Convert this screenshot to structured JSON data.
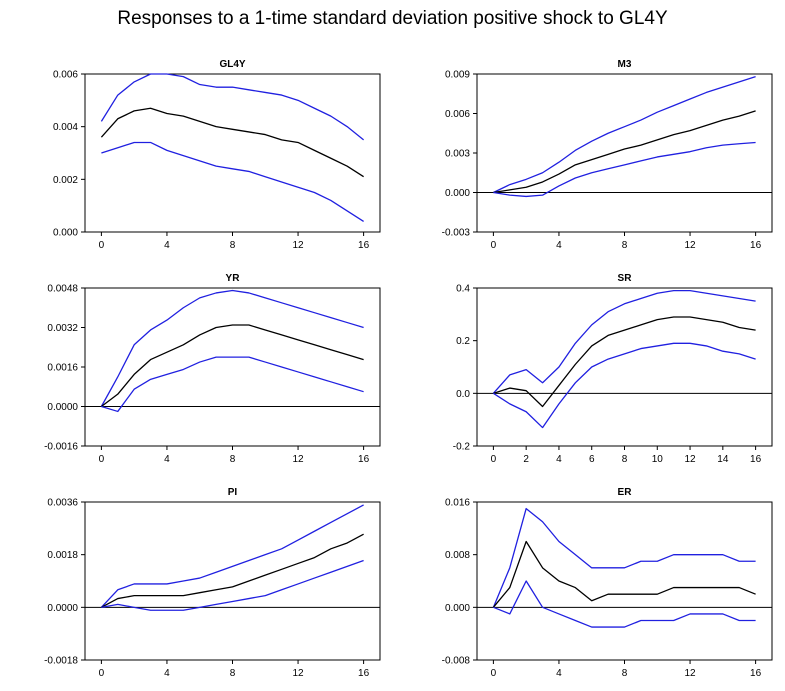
{
  "title": "Responses to a 1-time standard deviation positive shock to GL4Y",
  "colors": {
    "band": "#2020e0",
    "response": "#000000",
    "axis": "#000000"
  },
  "chart_data": [
    {
      "type": "line",
      "title": "GL4Y",
      "xlim": [
        -1,
        17
      ],
      "ylim": [
        0.0,
        0.006
      ],
      "xticks": [
        0,
        4,
        8,
        12,
        16
      ],
      "yticks": [
        "0.000",
        "0.002",
        "0.004",
        "0.006"
      ],
      "zero_line": false,
      "x": [
        0,
        1,
        2,
        3,
        4,
        5,
        6,
        7,
        8,
        9,
        10,
        11,
        12,
        13,
        14,
        15,
        16
      ],
      "series": [
        {
          "role": "upper",
          "values": [
            0.0042,
            0.0052,
            0.0057,
            0.006,
            0.006,
            0.0059,
            0.0056,
            0.0055,
            0.0055,
            0.0054,
            0.0053,
            0.0052,
            0.005,
            0.0047,
            0.0044,
            0.004,
            0.0035
          ]
        },
        {
          "role": "response",
          "values": [
            0.0036,
            0.0043,
            0.0046,
            0.0047,
            0.0045,
            0.0044,
            0.0042,
            0.004,
            0.0039,
            0.0038,
            0.0037,
            0.0035,
            0.0034,
            0.0031,
            0.0028,
            0.0025,
            0.0021
          ]
        },
        {
          "role": "lower",
          "values": [
            0.003,
            0.0032,
            0.0034,
            0.0034,
            0.0031,
            0.0029,
            0.0027,
            0.0025,
            0.0024,
            0.0023,
            0.0021,
            0.0019,
            0.0017,
            0.0015,
            0.0012,
            0.0008,
            0.0004
          ]
        }
      ]
    },
    {
      "type": "line",
      "title": "M3",
      "xlim": [
        -1,
        17
      ],
      "ylim": [
        -0.003,
        0.009
      ],
      "xticks": [
        0,
        4,
        8,
        12,
        16
      ],
      "yticks": [
        "-0.003",
        "0.000",
        "0.003",
        "0.006",
        "0.009"
      ],
      "zero_line": true,
      "x": [
        0,
        1,
        2,
        3,
        4,
        5,
        6,
        7,
        8,
        9,
        10,
        11,
        12,
        13,
        14,
        15,
        16
      ],
      "series": [
        {
          "role": "upper",
          "values": [
            0.0,
            0.0006,
            0.001,
            0.0015,
            0.0023,
            0.0032,
            0.0039,
            0.0045,
            0.005,
            0.0055,
            0.0061,
            0.0066,
            0.0071,
            0.0076,
            0.008,
            0.0084,
            0.0088
          ]
        },
        {
          "role": "response",
          "values": [
            0.0,
            0.0002,
            0.0004,
            0.0008,
            0.0014,
            0.0021,
            0.0025,
            0.0029,
            0.0033,
            0.0036,
            0.004,
            0.0044,
            0.0047,
            0.0051,
            0.0055,
            0.0058,
            0.0062
          ]
        },
        {
          "role": "lower",
          "values": [
            0.0,
            -0.0002,
            -0.0003,
            -0.0002,
            0.0005,
            0.0011,
            0.0015,
            0.0018,
            0.0021,
            0.0024,
            0.0027,
            0.0029,
            0.0031,
            0.0034,
            0.0036,
            0.0037,
            0.0038
          ]
        }
      ]
    },
    {
      "type": "line",
      "title": "YR",
      "xlim": [
        -1,
        17
      ],
      "ylim": [
        -0.0016,
        0.0048
      ],
      "xticks": [
        0,
        4,
        8,
        12,
        16
      ],
      "yticks": [
        "-0.0016",
        "0.0000",
        "0.0016",
        "0.0032",
        "0.0048"
      ],
      "zero_line": true,
      "x": [
        0,
        1,
        2,
        3,
        4,
        5,
        6,
        7,
        8,
        9,
        10,
        11,
        12,
        13,
        14,
        15,
        16
      ],
      "series": [
        {
          "role": "upper",
          "values": [
            0.0,
            0.0012,
            0.0025,
            0.0031,
            0.0035,
            0.004,
            0.0044,
            0.0046,
            0.0047,
            0.0046,
            0.0044,
            0.0042,
            0.004,
            0.0038,
            0.0036,
            0.0034,
            0.0032
          ]
        },
        {
          "role": "response",
          "values": [
            0.0,
            0.0005,
            0.0013,
            0.0019,
            0.0022,
            0.0025,
            0.0029,
            0.0032,
            0.0033,
            0.0033,
            0.0031,
            0.0029,
            0.0027,
            0.0025,
            0.0023,
            0.0021,
            0.0019
          ]
        },
        {
          "role": "lower",
          "values": [
            0.0,
            -0.0002,
            0.0007,
            0.0011,
            0.0013,
            0.0015,
            0.0018,
            0.002,
            0.002,
            0.002,
            0.0018,
            0.0016,
            0.0014,
            0.0012,
            0.001,
            0.0008,
            0.0006
          ]
        }
      ]
    },
    {
      "type": "line",
      "title": "SR",
      "xlim": [
        -1,
        17
      ],
      "ylim": [
        -0.2,
        0.4
      ],
      "xticks": [
        0,
        2,
        4,
        6,
        8,
        10,
        12,
        14,
        16
      ],
      "yticks": [
        "-0.2",
        "0.0",
        "0.2",
        "0.4"
      ],
      "zero_line": true,
      "x": [
        0,
        1,
        2,
        3,
        4,
        5,
        6,
        7,
        8,
        9,
        10,
        11,
        12,
        13,
        14,
        15,
        16
      ],
      "series": [
        {
          "role": "upper",
          "values": [
            0.0,
            0.07,
            0.09,
            0.04,
            0.1,
            0.19,
            0.26,
            0.31,
            0.34,
            0.36,
            0.38,
            0.39,
            0.39,
            0.38,
            0.37,
            0.36,
            0.35
          ]
        },
        {
          "role": "response",
          "values": [
            0.0,
            0.02,
            0.01,
            -0.05,
            0.03,
            0.11,
            0.18,
            0.22,
            0.24,
            0.26,
            0.28,
            0.29,
            0.29,
            0.28,
            0.27,
            0.25,
            0.24
          ]
        },
        {
          "role": "lower",
          "values": [
            0.0,
            -0.04,
            -0.07,
            -0.13,
            -0.04,
            0.04,
            0.1,
            0.13,
            0.15,
            0.17,
            0.18,
            0.19,
            0.19,
            0.18,
            0.16,
            0.15,
            0.13
          ]
        }
      ]
    },
    {
      "type": "line",
      "title": "PI",
      "xlim": [
        -1,
        17
      ],
      "ylim": [
        -0.0018,
        0.0036
      ],
      "xticks": [
        0,
        4,
        8,
        12,
        16
      ],
      "yticks": [
        "-0.0018",
        "0.0000",
        "0.0018",
        "0.0036"
      ],
      "zero_line": true,
      "x": [
        0,
        1,
        2,
        3,
        4,
        5,
        6,
        7,
        8,
        9,
        10,
        11,
        12,
        13,
        14,
        15,
        16
      ],
      "series": [
        {
          "role": "upper",
          "values": [
            0.0,
            0.0006,
            0.0008,
            0.0008,
            0.0008,
            0.0009,
            0.001,
            0.0012,
            0.0014,
            0.0016,
            0.0018,
            0.002,
            0.0023,
            0.0026,
            0.0029,
            0.0032,
            0.0035
          ]
        },
        {
          "role": "response",
          "values": [
            0.0,
            0.0003,
            0.0004,
            0.0004,
            0.0004,
            0.0004,
            0.0005,
            0.0006,
            0.0007,
            0.0009,
            0.0011,
            0.0013,
            0.0015,
            0.0017,
            0.002,
            0.0022,
            0.0025
          ]
        },
        {
          "role": "lower",
          "values": [
            0.0,
            0.0001,
            0.0,
            -0.0001,
            -0.0001,
            -0.0001,
            0.0,
            0.0001,
            0.0002,
            0.0003,
            0.0004,
            0.0006,
            0.0008,
            0.001,
            0.0012,
            0.0014,
            0.0016
          ]
        }
      ]
    },
    {
      "type": "line",
      "title": "ER",
      "xlim": [
        -1,
        17
      ],
      "ylim": [
        -0.008,
        0.016
      ],
      "xticks": [
        0,
        4,
        8,
        12,
        16
      ],
      "yticks": [
        "-0.008",
        "0.000",
        "0.008",
        "0.016"
      ],
      "zero_line": true,
      "x": [
        0,
        1,
        2,
        3,
        4,
        5,
        6,
        7,
        8,
        9,
        10,
        11,
        12,
        13,
        14,
        15,
        16
      ],
      "series": [
        {
          "role": "upper",
          "values": [
            0.0,
            0.006,
            0.015,
            0.013,
            0.01,
            0.008,
            0.006,
            0.006,
            0.006,
            0.007,
            0.007,
            0.008,
            0.008,
            0.008,
            0.008,
            0.007,
            0.007
          ]
        },
        {
          "role": "response",
          "values": [
            0.0,
            0.003,
            0.01,
            0.006,
            0.004,
            0.003,
            0.001,
            0.002,
            0.002,
            0.002,
            0.002,
            0.003,
            0.003,
            0.003,
            0.003,
            0.003,
            0.002
          ]
        },
        {
          "role": "lower",
          "values": [
            0.0,
            -0.001,
            0.004,
            0.0,
            -0.001,
            -0.002,
            -0.003,
            -0.003,
            -0.003,
            -0.002,
            -0.002,
            -0.002,
            -0.001,
            -0.001,
            -0.001,
            -0.002,
            -0.002
          ]
        }
      ]
    }
  ]
}
